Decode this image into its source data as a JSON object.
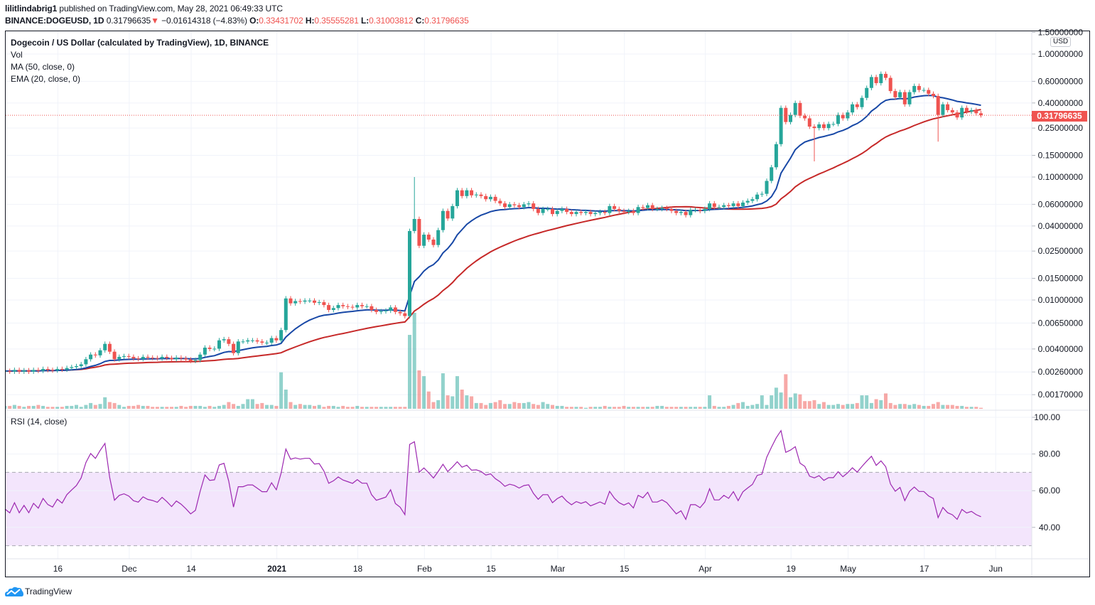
{
  "header": {
    "author": "lilitlindabrig1",
    "published_text": "published on TradingView.com, May 28, 2021 06:49:33 UTC",
    "symbol": "BINANCE:DOGEUSD, 1D",
    "price": "0.31796635",
    "change_icon": "triangle-down-icon",
    "change": "−0.01614318 (−4.83%)",
    "o_label": "O:",
    "o_value": "0.33431702",
    "h_label": "H:",
    "h_value": "0.35555281",
    "l_label": "L:",
    "l_value": "0.31003812",
    "c_label": "C:",
    "c_value": "0.31796635"
  },
  "legend": {
    "title": "Dogecoin / US Dollar (calculated by TradingView), 1D, BINANCE",
    "volume": "Vol",
    "ma": "MA (50, close, 0)",
    "ema": "EMA (20, close, 0)",
    "rsi": "RSI (14, close)"
  },
  "price_axis": {
    "currency": "USD",
    "last_price": "0.31796635"
  },
  "footer": {
    "brand": "TradingView"
  },
  "colors": {
    "up": "#26a69a",
    "down": "#ef5350",
    "ema": "#1848a6",
    "ma": "#c62828",
    "rsi": "#9c27b0",
    "rsi_band": "#f3e5fc",
    "last_price": "#ef5350"
  },
  "chart_data": {
    "type": "candlestick",
    "interval": "1D",
    "start_date": "2020-11-04",
    "end_date": "2021-05-28",
    "scale": "log",
    "grid": true,
    "closes": [
      0.00265,
      0.00262,
      0.0027,
      0.00262,
      0.00268,
      0.00262,
      0.0027,
      0.00266,
      0.00275,
      0.0027,
      0.00268,
      0.00275,
      0.00272,
      0.0028,
      0.00285,
      0.0029,
      0.003,
      0.0033,
      0.0036,
      0.00355,
      0.0039,
      0.0044,
      0.0038,
      0.0033,
      0.00345,
      0.0035,
      0.00345,
      0.00335,
      0.00332,
      0.00345,
      0.0034,
      0.00338,
      0.00335,
      0.00345,
      0.00338,
      0.0033,
      0.0034,
      0.00335,
      0.00328,
      0.0032,
      0.00325,
      0.0036,
      0.0041,
      0.004,
      0.00402,
      0.0047,
      0.0048,
      0.0044,
      0.0037,
      0.0046,
      0.0046,
      0.0047,
      0.0047,
      0.0046,
      0.0045,
      0.0045,
      0.0049,
      0.0047,
      0.0057,
      0.0103,
      0.0094,
      0.0098,
      0.0097,
      0.0099,
      0.0099,
      0.0095,
      0.0096,
      0.0091,
      0.0083,
      0.0086,
      0.0091,
      0.0089,
      0.0088,
      0.0087,
      0.0091,
      0.0089,
      0.0089,
      0.0083,
      0.008,
      0.0081,
      0.0082,
      0.0087,
      0.008,
      0.0078,
      0.0074,
      0.0364,
      0.0456,
      0.0276,
      0.034,
      0.031,
      0.028,
      0.037,
      0.053,
      0.046,
      0.058,
      0.078,
      0.07,
      0.078,
      0.071,
      0.072,
      0.07,
      0.066,
      0.069,
      0.064,
      0.061,
      0.057,
      0.06,
      0.059,
      0.057,
      0.06,
      0.061,
      0.055,
      0.051,
      0.055,
      0.055,
      0.05,
      0.053,
      0.055,
      0.052,
      0.05,
      0.052,
      0.051,
      0.052,
      0.05,
      0.051,
      0.052,
      0.051,
      0.058,
      0.055,
      0.053,
      0.052,
      0.053,
      0.051,
      0.057,
      0.056,
      0.059,
      0.055,
      0.055,
      0.056,
      0.055,
      0.053,
      0.051,
      0.052,
      0.049,
      0.054,
      0.054,
      0.053,
      0.055,
      0.061,
      0.057,
      0.057,
      0.059,
      0.058,
      0.061,
      0.058,
      0.062,
      0.064,
      0.066,
      0.072,
      0.073,
      0.093,
      0.12,
      0.185,
      0.365,
      0.28,
      0.32,
      0.4,
      0.315,
      0.3,
      0.257,
      0.25,
      0.268,
      0.25,
      0.27,
      0.27,
      0.32,
      0.3,
      0.335,
      0.39,
      0.37,
      0.44,
      0.53,
      0.65,
      0.58,
      0.69,
      0.64,
      0.5,
      0.445,
      0.49,
      0.39,
      0.49,
      0.55,
      0.51,
      0.51,
      0.475,
      0.456,
      0.32,
      0.39,
      0.35,
      0.335,
      0.305,
      0.365,
      0.34,
      0.35,
      0.33,
      0.31796635
    ],
    "wick_extremes": [
      {
        "date": "2021-01-29",
        "high": 0.1
      },
      {
        "date": "2021-04-23",
        "low": 0.134
      },
      {
        "date": "2021-05-19",
        "low": 0.194
      }
    ],
    "volume_relative": [
      3,
      3,
      4,
      3,
      2,
      3,
      3,
      4,
      3,
      2,
      2,
      2,
      2,
      3,
      3,
      4,
      2,
      4,
      6,
      4,
      5,
      12,
      7,
      6,
      4,
      2,
      3,
      3,
      4,
      3,
      3,
      2,
      2,
      2,
      2,
      2,
      2,
      3,
      2,
      3,
      3,
      3,
      2,
      3,
      2,
      3,
      4,
      7,
      5,
      3,
      5,
      10,
      10,
      5,
      6,
      4,
      4,
      3,
      38,
      20,
      7,
      4,
      5,
      4,
      4,
      3,
      4,
      2,
      3,
      3,
      2,
      3,
      2,
      2,
      3,
      2,
      2,
      2,
      2,
      2,
      2,
      2,
      2,
      2,
      2,
      77,
      100,
      40,
      34,
      18,
      7,
      9,
      37,
      14,
      13,
      34,
      20,
      14,
      13,
      6,
      6,
      4,
      6,
      7,
      9,
      5,
      5,
      7,
      6,
      6,
      7,
      5,
      4,
      7,
      5,
      4,
      3,
      3,
      2,
      2,
      2,
      2,
      1,
      2,
      2,
      2,
      3,
      2,
      2,
      2,
      3,
      2,
      2,
      2,
      2,
      2,
      2,
      3,
      3,
      2,
      2,
      2,
      2,
      2,
      2,
      2,
      2,
      2,
      14,
      3,
      2,
      2,
      3,
      4,
      6,
      7,
      3,
      4,
      5,
      14,
      4,
      14,
      22,
      17,
      36,
      12,
      16,
      15,
      8,
      8,
      9,
      5,
      7,
      4,
      4,
      5,
      4,
      5,
      5,
      6,
      14,
      14,
      6,
      10,
      9,
      16,
      6,
      4,
      5,
      5,
      4,
      5,
      4,
      3,
      3,
      5,
      7,
      4,
      4,
      4,
      3,
      3,
      2,
      2,
      2,
      1
    ],
    "indicators": {
      "ma_period": 50,
      "ema_period": 20,
      "rsi_period": 14,
      "rsi_upper": 70,
      "rsi_lower": 30
    },
    "price_ticks": [
      {
        "value": 1.5,
        "label": "1.50000000"
      },
      {
        "value": 1.0,
        "label": "1.00000000"
      },
      {
        "value": 0.6,
        "label": "0.60000000"
      },
      {
        "value": 0.4,
        "label": "0.40000000"
      },
      {
        "value": 0.25,
        "label": "0.25000000"
      },
      {
        "value": 0.15,
        "label": "0.15000000"
      },
      {
        "value": 0.1,
        "label": "0.10000000"
      },
      {
        "value": 0.06,
        "label": "0.06000000"
      },
      {
        "value": 0.04,
        "label": "0.04000000"
      },
      {
        "value": 0.025,
        "label": "0.02500000"
      },
      {
        "value": 0.015,
        "label": "0.01500000"
      },
      {
        "value": 0.01,
        "label": "0.01000000"
      },
      {
        "value": 0.0065,
        "label": "0.00650000"
      },
      {
        "value": 0.004,
        "label": "0.00400000"
      },
      {
        "value": 0.0026,
        "label": "0.00260000"
      },
      {
        "value": 0.0017,
        "label": "0.00170000"
      }
    ],
    "rsi_ticks": [
      {
        "value": 100,
        "label": "100.00"
      },
      {
        "value": 80,
        "label": "80.00"
      },
      {
        "value": 60,
        "label": "60.00"
      },
      {
        "value": 40,
        "label": "40.00"
      }
    ],
    "time_ticks": [
      {
        "date": "2020-11-16",
        "label": "16"
      },
      {
        "date": "2020-12-01",
        "label": "Dec"
      },
      {
        "date": "2020-12-14",
        "label": "14"
      },
      {
        "date": "2021-01-01",
        "label": "2021",
        "bold": true
      },
      {
        "date": "2021-01-18",
        "label": "18"
      },
      {
        "date": "2021-02-01",
        "label": "Feb"
      },
      {
        "date": "2021-02-15",
        "label": "15"
      },
      {
        "date": "2021-03-01",
        "label": "Mar"
      },
      {
        "date": "2021-03-15",
        "label": "15"
      },
      {
        "date": "2021-04-01",
        "label": "Apr"
      },
      {
        "date": "2021-04-19",
        "label": "19"
      },
      {
        "date": "2021-05-01",
        "label": "May"
      },
      {
        "date": "2021-05-17",
        "label": "17"
      },
      {
        "date": "2021-06-01",
        "label": "Jun"
      }
    ]
  }
}
